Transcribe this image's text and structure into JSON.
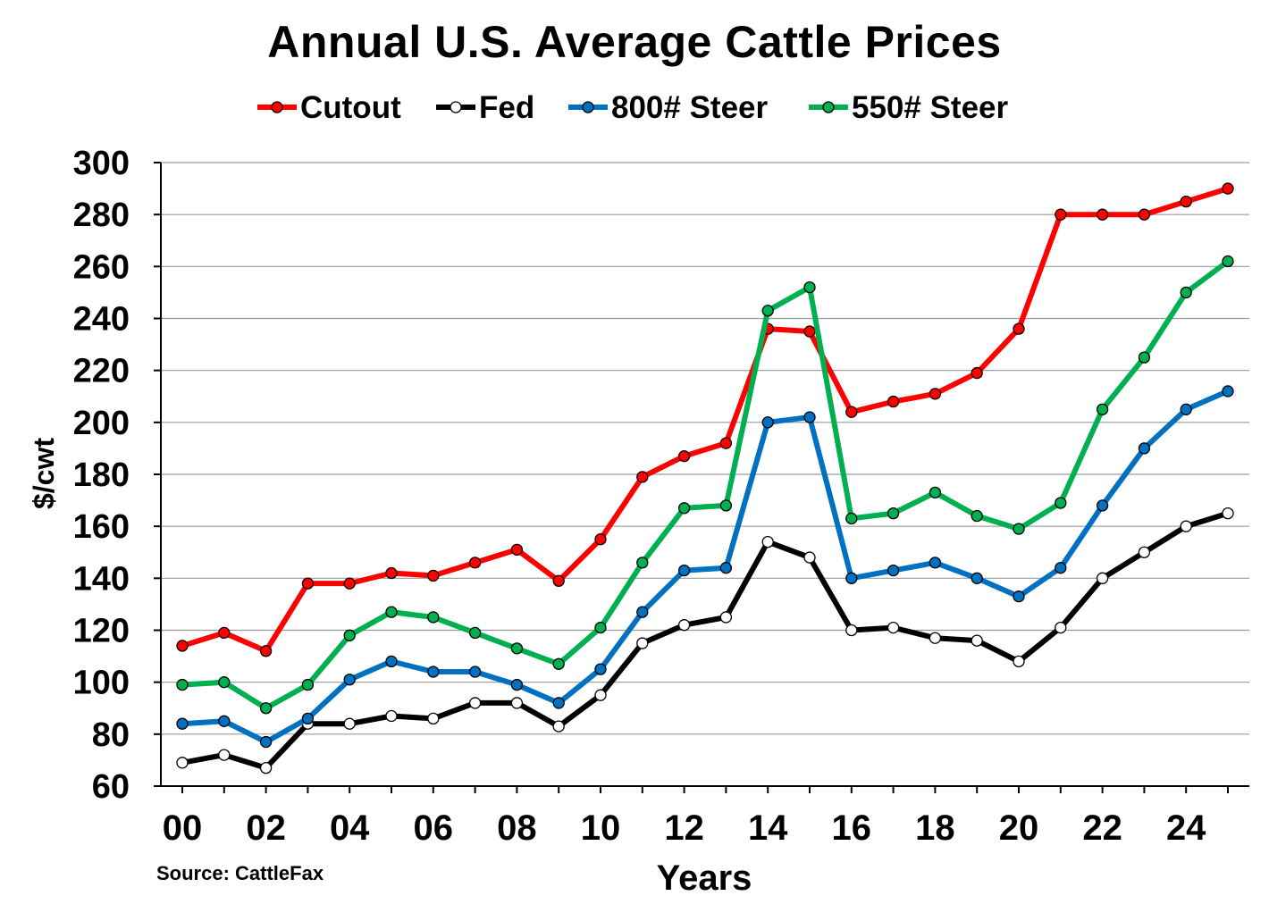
{
  "chart_data": {
    "type": "line",
    "title": "Annual U.S. Average Cattle Prices",
    "xlabel": "Years",
    "ylabel": "$/cwt",
    "source": "Source: CattleFax",
    "ylim": [
      60,
      300
    ],
    "yticks": [
      60,
      80,
      100,
      120,
      140,
      160,
      180,
      200,
      220,
      240,
      260,
      280,
      300
    ],
    "x": [
      2000,
      2001,
      2002,
      2003,
      2004,
      2005,
      2006,
      2007,
      2008,
      2009,
      2010,
      2011,
      2012,
      2013,
      2014,
      2015,
      2016,
      2017,
      2018,
      2019,
      2020,
      2021,
      2022,
      2023,
      2024,
      2025
    ],
    "xtick_labels": [
      "00",
      "02",
      "04",
      "06",
      "08",
      "10",
      "12",
      "14",
      "16",
      "18",
      "20",
      "22",
      "24"
    ],
    "grid": true,
    "legend_position": "top",
    "series": [
      {
        "name": "Cutout",
        "color": "#ff0000",
        "marker_fill": "#ff0000",
        "values": [
          114,
          119,
          112,
          138,
          138,
          142,
          141,
          146,
          151,
          139,
          155,
          179,
          187,
          192,
          236,
          235,
          204,
          208,
          211,
          219,
          236,
          280,
          280,
          280,
          285,
          290
        ]
      },
      {
        "name": "Fed",
        "color": "#000000",
        "marker_fill": "#ffffff",
        "values": [
          69,
          72,
          67,
          84,
          84,
          87,
          86,
          92,
          92,
          83,
          95,
          115,
          122,
          125,
          154,
          148,
          120,
          121,
          117,
          116,
          108,
          121,
          140,
          150,
          160,
          165
        ]
      },
      {
        "name": "800# Steer",
        "color": "#0070c0",
        "marker_fill": "#0070c0",
        "values": [
          84,
          85,
          77,
          86,
          101,
          108,
          104,
          104,
          99,
          92,
          105,
          127,
          143,
          144,
          200,
          202,
          140,
          143,
          146,
          140,
          133,
          144,
          168,
          190,
          205,
          212
        ]
      },
      {
        "name": "550# Steer",
        "color": "#00b050",
        "marker_fill": "#00b050",
        "values": [
          99,
          100,
          90,
          99,
          118,
          127,
          125,
          119,
          113,
          107,
          121,
          146,
          167,
          168,
          243,
          252,
          163,
          165,
          173,
          164,
          159,
          169,
          205,
          225,
          250,
          262
        ]
      }
    ]
  }
}
